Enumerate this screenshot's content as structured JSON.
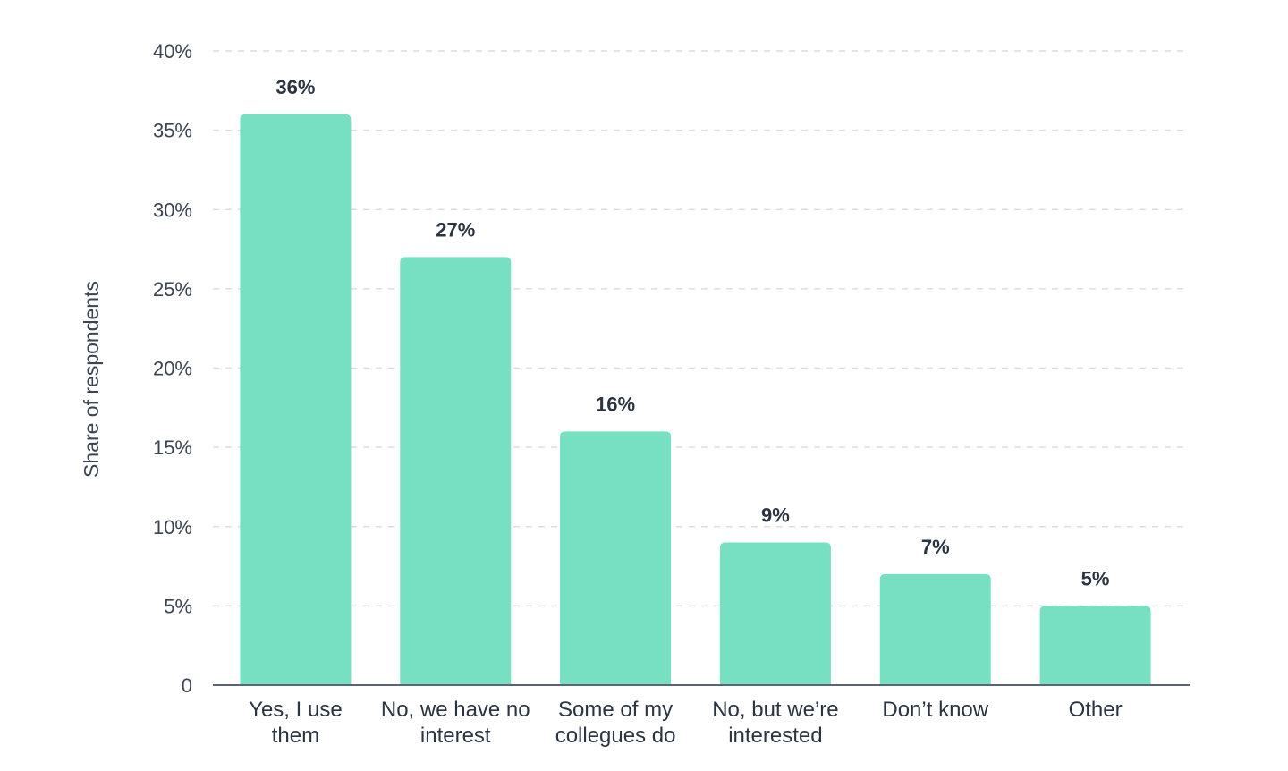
{
  "chart_data": {
    "type": "bar",
    "title": "",
    "xlabel": "",
    "ylabel": "Share of respondents",
    "ylim": [
      0,
      40
    ],
    "y_ticks": [
      0,
      5,
      10,
      15,
      20,
      25,
      30,
      35,
      40
    ],
    "y_tick_labels": [
      "0",
      "5%",
      "10%",
      "15%",
      "20%",
      "25%",
      "30%",
      "35%",
      "40%"
    ],
    "grid": true,
    "bar_color": "#77e0c2",
    "categories": [
      [
        "Yes, I use",
        "them"
      ],
      [
        "No, we have no",
        "interest"
      ],
      [
        "Some of my",
        "collegues do"
      ],
      [
        "No, but we’re",
        "interested"
      ],
      [
        "Don’t know"
      ],
      [
        "Other"
      ]
    ],
    "values": [
      36,
      27,
      16,
      9,
      7,
      5
    ],
    "value_labels": [
      "36%",
      "27%",
      "16%",
      "9%",
      "7%",
      "5%"
    ]
  }
}
